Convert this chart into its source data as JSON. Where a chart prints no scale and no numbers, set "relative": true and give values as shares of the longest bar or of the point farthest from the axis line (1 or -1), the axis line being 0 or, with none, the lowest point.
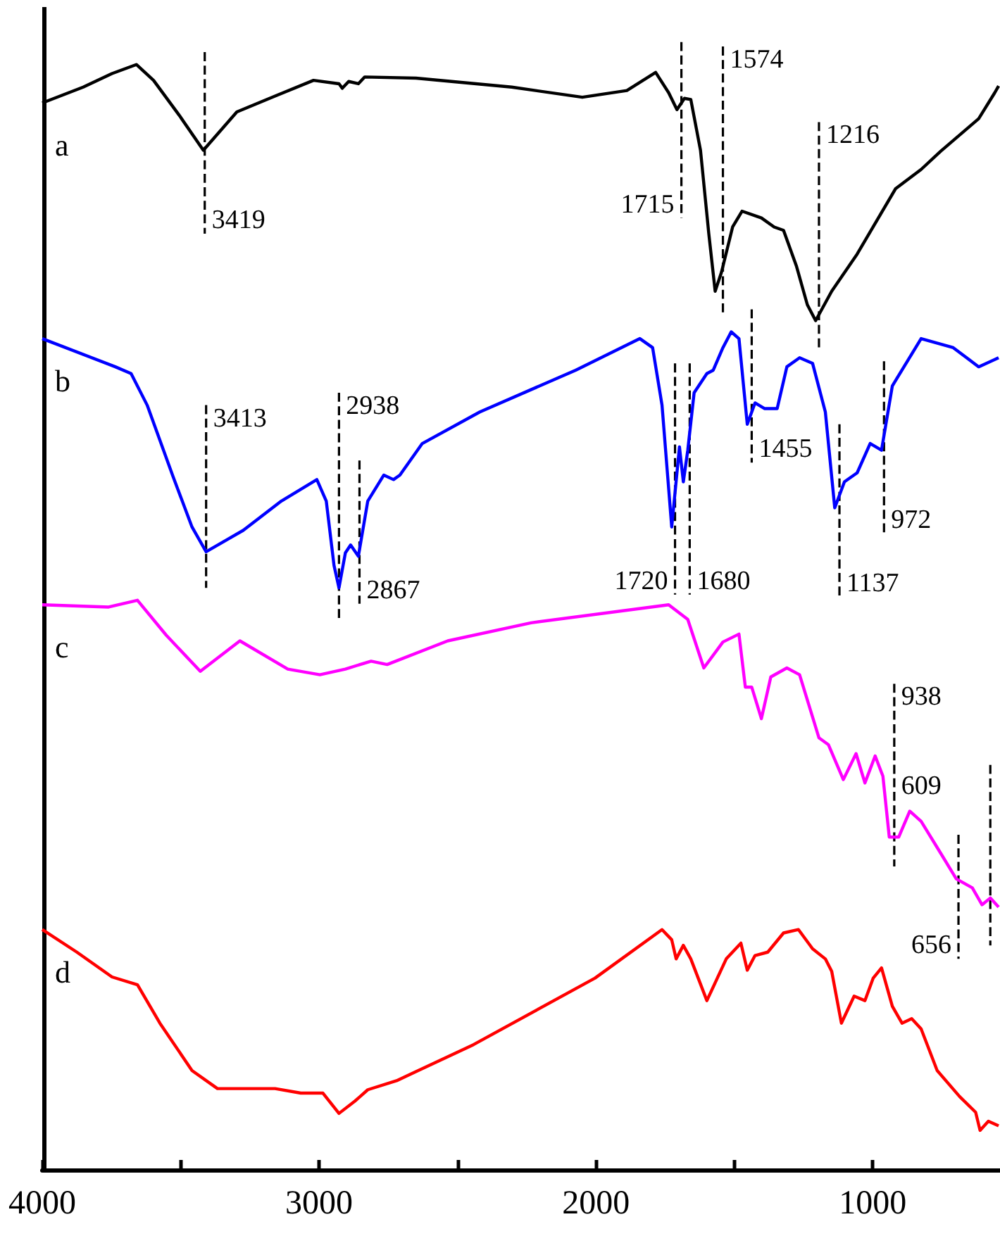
{
  "chart_data": {
    "type": "line",
    "relative": true,
    "marker": "none",
    "xlim": [
      4000,
      540
    ],
    "xticks": [
      4000,
      {
        "value": 3500,
        "label": null
      },
      3000,
      {
        "value": 2500,
        "label": null
      },
      2000,
      {
        "value": 1500,
        "label": null
      },
      1000
    ],
    "series": [
      {
        "name": "a",
        "color": "#000000",
        "x": [
          4000,
          3852,
          3748,
          3660,
          3598,
          3505,
          3418,
          3297,
          3159,
          3020,
          2928,
          2916,
          2893,
          2858,
          2835,
          2650,
          2304,
          2049,
          1888,
          1784,
          1737,
          1707,
          1680,
          1657,
          1622,
          1592,
          1569,
          1546,
          1506,
          1472,
          1402,
          1356,
          1322,
          1275,
          1236,
          1206,
          1148,
          1056,
          917,
          825,
          755,
          617,
          559,
          545
        ],
        "values": [
          0.946,
          0.96,
          0.972,
          0.98,
          0.966,
          0.935,
          0.904,
          0.938,
          0.952,
          0.966,
          0.963,
          0.959,
          0.965,
          0.963,
          0.969,
          0.968,
          0.96,
          0.951,
          0.957,
          0.973,
          0.955,
          0.94,
          0.95,
          0.949,
          0.904,
          0.83,
          0.779,
          0.796,
          0.836,
          0.85,
          0.844,
          0.836,
          0.833,
          0.801,
          0.767,
          0.753,
          0.779,
          0.812,
          0.87,
          0.887,
          0.903,
          0.932,
          0.955,
          0.961
        ]
      },
      {
        "name": "b",
        "color": "#0000ff",
        "x": [
          4000,
          3736,
          3679,
          3621,
          3528,
          3459,
          3408,
          3274,
          3136,
          3008,
          2974,
          2946,
          2928,
          2905,
          2886,
          2858,
          2824,
          2766,
          2731,
          2708,
          2627,
          2419,
          2073,
          1841,
          1795,
          1761,
          1726,
          1698,
          1684,
          1668,
          1645,
          1599,
          1576,
          1541,
          1511,
          1483,
          1453,
          1425,
          1391,
          1345,
          1310,
          1264,
          1217,
          1171,
          1137,
          1102,
          1056,
          1009,
          968,
          929,
          825,
          709,
          617,
          545
        ],
        "values": [
          0.737,
          0.712,
          0.706,
          0.678,
          0.615,
          0.57,
          0.548,
          0.567,
          0.593,
          0.612,
          0.593,
          0.536,
          0.516,
          0.547,
          0.554,
          0.544,
          0.593,
          0.616,
          0.612,
          0.616,
          0.644,
          0.672,
          0.709,
          0.737,
          0.729,
          0.678,
          0.57,
          0.641,
          0.61,
          0.638,
          0.689,
          0.706,
          0.709,
          0.729,
          0.743,
          0.737,
          0.661,
          0.68,
          0.675,
          0.675,
          0.712,
          0.72,
          0.715,
          0.672,
          0.587,
          0.61,
          0.618,
          0.644,
          0.638,
          0.695,
          0.737,
          0.729,
          0.712,
          0.72
        ]
      },
      {
        "name": "c",
        "color": "#ff00ff",
        "x": [
          4000,
          3760,
          3656,
          3552,
          3429,
          3286,
          3113,
          2997,
          2905,
          2812,
          2754,
          2535,
          2234,
          1737,
          1668,
          1610,
          1541,
          1483,
          1460,
          1437,
          1402,
          1368,
          1310,
          1264,
          1194,
          1160,
          1106,
          1060,
          1028,
          991,
          963,
          940,
          906,
          866,
          825,
          755,
          698,
          640,
          605,
          575,
          545
        ],
        "values": [
          0.501,
          0.499,
          0.505,
          0.474,
          0.442,
          0.469,
          0.444,
          0.439,
          0.444,
          0.451,
          0.448,
          0.469,
          0.485,
          0.501,
          0.488,
          0.445,
          0.468,
          0.475,
          0.428,
          0.428,
          0.4,
          0.437,
          0.445,
          0.439,
          0.383,
          0.377,
          0.346,
          0.369,
          0.343,
          0.367,
          0.349,
          0.295,
          0.295,
          0.318,
          0.309,
          0.281,
          0.258,
          0.25,
          0.235,
          0.241,
          0.233
        ]
      },
      {
        "name": "d",
        "color": "#ff0000",
        "x": [
          4000,
          3875,
          3748,
          3656,
          3575,
          3459,
          3367,
          3159,
          3066,
          2986,
          2928,
          2870,
          2824,
          2720,
          2442,
          2003,
          1761,
          1726,
          1710,
          1684,
          1657,
          1599,
          1529,
          1476,
          1453,
          1425,
          1379,
          1322,
          1268,
          1217,
          1171,
          1148,
          1113,
          1067,
          1028,
          998,
          968,
          929,
          894,
          859,
          825,
          767,
          686,
          628,
          612,
          582,
          545
        ],
        "values": [
          0.213,
          0.193,
          0.171,
          0.164,
          0.13,
          0.088,
          0.072,
          0.072,
          0.068,
          0.068,
          0.05,
          0.061,
          0.071,
          0.079,
          0.111,
          0.17,
          0.213,
          0.204,
          0.187,
          0.199,
          0.187,
          0.15,
          0.187,
          0.201,
          0.177,
          0.19,
          0.193,
          0.21,
          0.213,
          0.196,
          0.187,
          0.176,
          0.13,
          0.154,
          0.15,
          0.17,
          0.179,
          0.145,
          0.13,
          0.134,
          0.125,
          0.088,
          0.065,
          0.051,
          0.035,
          0.043,
          0.039
        ]
      },
      {
        "type": "line",
        "line_style": "dashed",
        "color": "#000000",
        "x": [
          3413,
          3413
        ],
        "values": [
          0.991,
          0.83
        ]
      },
      {
        "type": "line",
        "line_style": "dashed",
        "color": "#000000",
        "x": [
          1691,
          1691
        ],
        "values": [
          1.0,
          0.844
        ]
      },
      {
        "type": "line",
        "line_style": "dashed",
        "color": "#000000",
        "x": [
          1541,
          1541
        ],
        "values": [
          0.996,
          0.757
        ]
      },
      {
        "type": "line",
        "line_style": "dashed",
        "color": "#000000",
        "x": [
          1194,
          1194
        ],
        "values": [
          0.929,
          0.729
        ]
      },
      {
        "type": "line",
        "line_style": "dashed",
        "color": "#000000",
        "x": [
          1437,
          1437
        ],
        "values": [
          0.763,
          0.627
        ]
      },
      {
        "type": "line",
        "line_style": "dashed",
        "color": "#000000",
        "x": [
          3408,
          3408
        ],
        "values": [
          0.678,
          0.516
        ]
      },
      {
        "type": "line",
        "line_style": "dashed",
        "color": "#000000",
        "x": [
          2928,
          2928
        ],
        "values": [
          0.689,
          0.489
        ]
      },
      {
        "type": "line",
        "line_style": "dashed",
        "color": "#000000",
        "x": [
          2854,
          2854
        ],
        "values": [
          0.629,
          0.502
        ]
      },
      {
        "type": "line",
        "line_style": "dashed",
        "color": "#000000",
        "x": [
          1714,
          1714
        ],
        "values": [
          0.715,
          0.51
        ]
      },
      {
        "type": "line",
        "line_style": "dashed",
        "color": "#000000",
        "x": [
          1661,
          1661
        ],
        "values": [
          0.715,
          0.51
        ]
      },
      {
        "type": "line",
        "line_style": "dashed",
        "color": "#000000",
        "x": [
          1120,
          1120
        ],
        "values": [
          0.661,
          0.508
        ]
      },
      {
        "type": "line",
        "line_style": "dashed",
        "color": "#000000",
        "x": [
          959,
          959
        ],
        "values": [
          0.717,
          0.564
        ]
      },
      {
        "type": "line",
        "line_style": "dashed",
        "color": "#000000",
        "x": [
          922,
          922,
          922
        ],
        "values": [
          0.431,
          0.352,
          0.269
        ]
      },
      {
        "type": "line",
        "line_style": "dashed",
        "color": "#000000",
        "x": [
          690,
          690
        ],
        "values": [
          0.297,
          0.187
        ]
      },
      {
        "type": "line",
        "line_style": "dashed",
        "color": "#000000",
        "x": [
          575,
          575
        ],
        "values": [
          0.359,
          0.199
        ]
      }
    ],
    "annotations": [
      {
        "text": "3419",
        "x": 3413,
        "y": 0.83
      },
      {
        "text": "1715",
        "x": 1691,
        "y": 0.844
      },
      {
        "text": "1574",
        "x": 1541,
        "y": 0.996
      },
      {
        "text": "1216",
        "x": 1194,
        "y": 0.929
      },
      {
        "text": "1455",
        "x": 1437,
        "y": 0.627
      },
      {
        "text": "3413",
        "x": 3408,
        "y": 0.678
      },
      {
        "text": "2938",
        "x": 2928,
        "y": 0.689
      },
      {
        "text": "2867",
        "x": 2854,
        "y": 0.502
      },
      {
        "text": "1720",
        "x": 1714,
        "y": 0.51
      },
      {
        "text": "1680",
        "x": 1661,
        "y": 0.51
      },
      {
        "text": "1137",
        "x": 1120,
        "y": 0.508
      },
      {
        "text": "972",
        "x": 959,
        "y": 0.564
      },
      {
        "text": "938",
        "x": 922,
        "y": 0.431
      },
      {
        "text": "609",
        "x": 922,
        "y": 0.352
      },
      {
        "text": "656",
        "x": 690,
        "y": 0.187
      }
    ]
  }
}
